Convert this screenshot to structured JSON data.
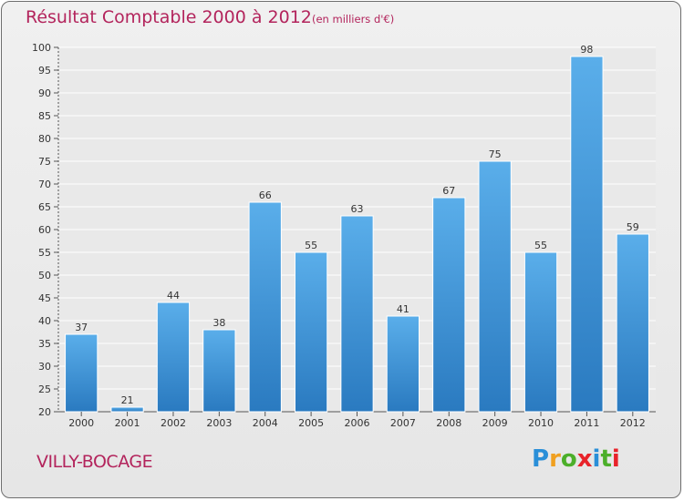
{
  "header": {
    "title": "Résultat Comptable 2000 à 2012",
    "subtitle": "(en milliers d'€)"
  },
  "footer": {
    "commune": "VILLY-BOCAGE",
    "logo_letters": [
      "P",
      "r",
      "o",
      "x",
      "i",
      "t",
      "i"
    ],
    "logo_colors": [
      "#2a8fd8",
      "#f0a020",
      "#4caf2a",
      "#e8232a",
      "#2a8fd8",
      "#4caf2a",
      "#e8232a"
    ]
  },
  "chart_data": {
    "type": "bar",
    "title": "Résultat Comptable 2000 à 2012",
    "ylabel": "(en milliers d'€)",
    "xlabel": "",
    "categories": [
      "2000",
      "2001",
      "2002",
      "2003",
      "2004",
      "2005",
      "2006",
      "2007",
      "2008",
      "2009",
      "2010",
      "2011",
      "2012"
    ],
    "values": [
      37,
      21,
      44,
      38,
      66,
      55,
      63,
      41,
      67,
      75,
      55,
      98,
      59
    ],
    "ylim": [
      20,
      100
    ],
    "yticks": [
      20,
      25,
      30,
      35,
      40,
      45,
      50,
      55,
      60,
      65,
      70,
      75,
      80,
      85,
      90,
      95,
      100
    ],
    "grid": true,
    "bar_color_top": "#5aaeea",
    "bar_color_bottom": "#2a7ac0"
  }
}
